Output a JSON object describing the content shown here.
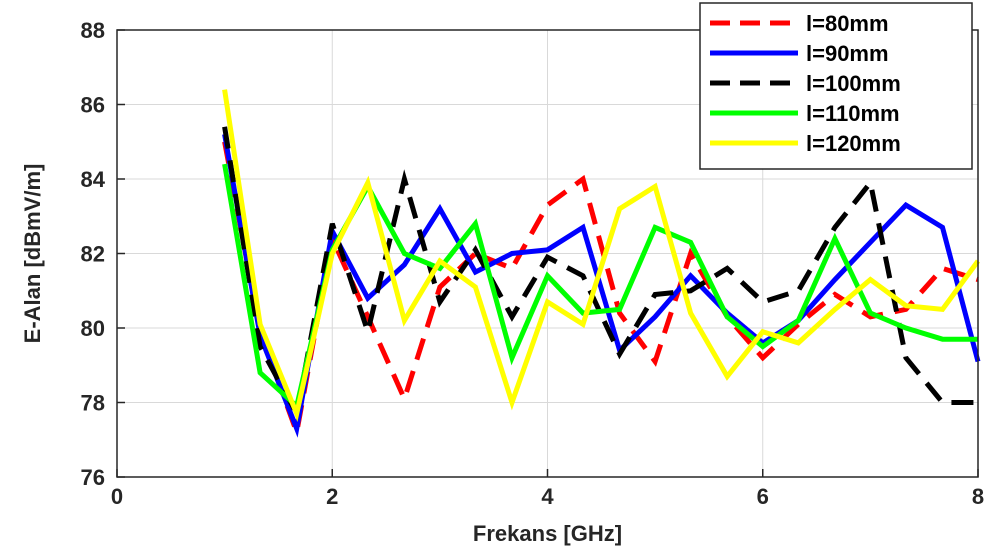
{
  "chart_data": {
    "type": "line",
    "xlabel": "Frekans [GHz]",
    "ylabel": "E-Alan [dBmV/m]",
    "xlim": [
      0,
      8
    ],
    "ylim": [
      76,
      88
    ],
    "xticks": [
      "0",
      "2",
      "4",
      "6",
      "8"
    ],
    "yticks": [
      "76",
      "78",
      "80",
      "82",
      "84",
      "86",
      "88"
    ],
    "grid": true,
    "legend_position": "top-right",
    "x": [
      1.0,
      1.33,
      1.67,
      2.0,
      2.33,
      2.67,
      3.0,
      3.33,
      3.67,
      4.0,
      4.33,
      4.67,
      5.0,
      5.33,
      5.67,
      6.0,
      6.33,
      6.67,
      7.0,
      7.33,
      7.67,
      8.0
    ],
    "series": [
      {
        "name": "l=80mm",
        "color": "#ff0000",
        "dash": "dash",
        "values": [
          85.0,
          79.9,
          77.2,
          82.4,
          80.3,
          78.1,
          81.1,
          82.0,
          81.6,
          83.3,
          84.0,
          80.4,
          79.1,
          82.0,
          80.3,
          79.2,
          80.1,
          80.9,
          80.3,
          80.5,
          81.6,
          81.3
        ]
      },
      {
        "name": "l=90mm",
        "color": "#0000ff",
        "dash": "solid",
        "values": [
          85.2,
          79.8,
          77.3,
          82.6,
          80.8,
          81.7,
          83.2,
          81.5,
          82.0,
          82.1,
          82.7,
          79.4,
          80.3,
          81.4,
          80.4,
          79.6,
          80.2,
          81.3,
          82.3,
          83.3,
          82.7,
          79.1
        ]
      },
      {
        "name": "l=100mm",
        "color": "#000000",
        "dash": "dash",
        "values": [
          85.4,
          79.5,
          77.7,
          82.8,
          79.9,
          84.0,
          80.7,
          82.1,
          80.3,
          81.9,
          81.4,
          79.3,
          80.9,
          81.0,
          81.6,
          80.7,
          81.0,
          82.7,
          83.9,
          79.2,
          78.0,
          78.0
        ]
      },
      {
        "name": "l=110mm",
        "color": "#00ff00",
        "dash": "solid",
        "values": [
          84.4,
          78.8,
          77.9,
          82.1,
          83.8,
          82.0,
          81.6,
          82.8,
          79.2,
          81.4,
          80.4,
          80.5,
          82.7,
          82.3,
          80.3,
          79.5,
          80.2,
          82.4,
          80.4,
          80.0,
          79.7,
          79.7
        ]
      },
      {
        "name": "l=120mm",
        "color": "#ffff00",
        "dash": "solid",
        "values": [
          86.4,
          80.1,
          77.7,
          82.0,
          83.9,
          80.2,
          81.8,
          81.1,
          78.0,
          80.7,
          80.1,
          83.2,
          83.8,
          80.4,
          78.7,
          79.9,
          79.6,
          80.5,
          81.3,
          80.6,
          80.5,
          81.8
        ]
      }
    ]
  }
}
